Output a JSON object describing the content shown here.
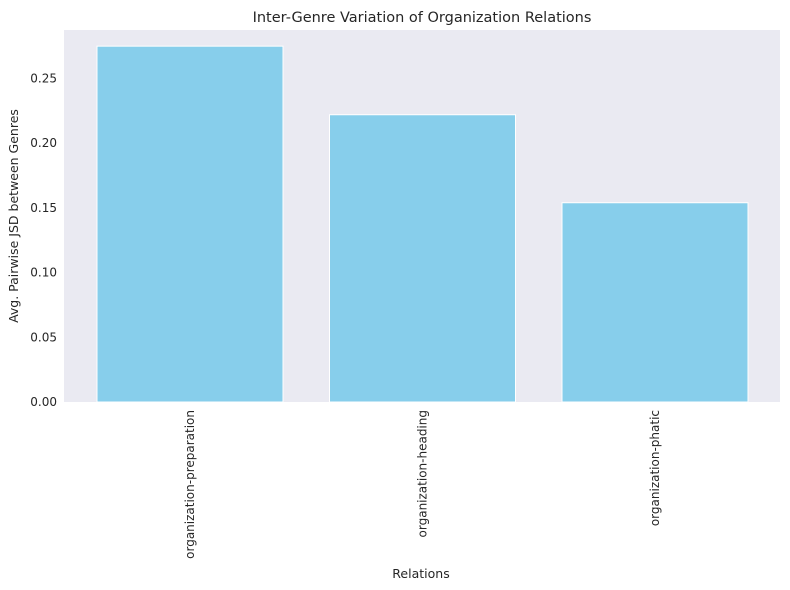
{
  "chart_data": {
    "type": "bar",
    "title": "Inter-Genre Variation of Organization Relations",
    "xlabel": "Relations",
    "ylabel": "Avg. Pairwise JSD between Genres",
    "categories": [
      "organization-preparation",
      "organization-heading",
      "organization-phatic"
    ],
    "values": [
      0.275,
      0.222,
      0.154
    ],
    "ylim": [
      0,
      0.2875
    ],
    "yticks": [
      "0.00",
      "0.05",
      "0.10",
      "0.15",
      "0.20",
      "0.25"
    ],
    "grid": false,
    "legend": "none",
    "colors": {
      "bar": "#87ceeb",
      "plot_background": "#eaeaf2",
      "bar_edge": "#ffffff",
      "text": "#262626"
    }
  }
}
